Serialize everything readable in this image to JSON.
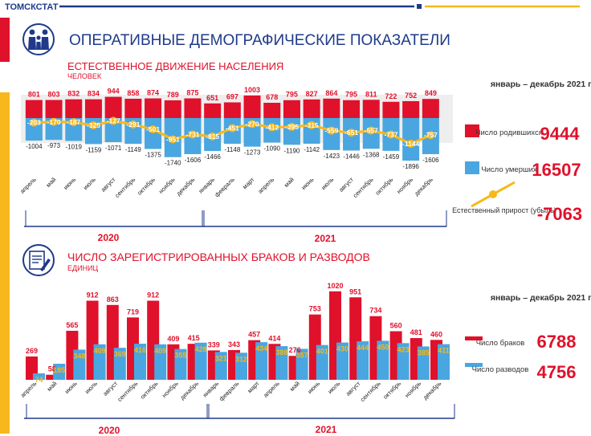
{
  "header": {
    "agency": "ТОМСКСТАТ",
    "title": "ОПЕРАТИВНЫЕ ДЕМОГРАФИЧЕСКИЕ ПОКАЗАТЕЛИ"
  },
  "colors": {
    "red": "#e0112b",
    "blue": "#4aa6e0",
    "yellow": "#f7b81b",
    "navy": "#1f3a8a",
    "accent_red": "#e0112b",
    "accent_yellow": "#f7b81b"
  },
  "icons": [
    "family-icon",
    "document-icon"
  ],
  "chart_data": [
    {
      "type": "bar",
      "title": "ЕСТЕСТВЕННОЕ ДВИЖЕНИЕ НАСЕЛЕНИЯ",
      "unit": "ЧЕЛОВЕК",
      "categories": [
        "апрель",
        "май",
        "июнь",
        "июль",
        "август",
        "сентябрь",
        "октябрь",
        "ноябрь",
        "декабрь",
        "январь",
        "февраль",
        "март",
        "апрель",
        "май",
        "июнь",
        "июль",
        "август",
        "сентябрь",
        "октябрь",
        "ноябрь",
        "декабрь"
      ],
      "year_groups": [
        {
          "label": "2020",
          "start": 0,
          "end": 8
        },
        {
          "label": "2021",
          "start": 9,
          "end": 20
        }
      ],
      "series": [
        {
          "name": "births",
          "values": [
            801,
            803,
            832,
            834,
            944,
            858,
            874,
            789,
            875,
            651,
            697,
            1003,
            678,
            795,
            827,
            864,
            795,
            811,
            722,
            752,
            849
          ]
        },
        {
          "name": "deaths",
          "values": [
            -1004,
            -973,
            -1019,
            -1159,
            -1071,
            -1149,
            -1375,
            -1740,
            -1606,
            -1466,
            -1148,
            -1273,
            -1090,
            -1190,
            -1142,
            -1423,
            -1446,
            -1368,
            -1459,
            -1896,
            -1606
          ]
        },
        {
          "name": "natural_change",
          "values": [
            -203,
            -170,
            -187,
            -325,
            -127,
            -291,
            -501,
            -951,
            -731,
            -815,
            -451,
            -270,
            -412,
            -395,
            -315,
            -559,
            -651,
            -557,
            -737,
            -1144,
            -757
          ]
        }
      ],
      "summary": {
        "period": "январь – декабрь 2021 года",
        "items": [
          {
            "label": "Число родившихся",
            "value": "9444"
          },
          {
            "label": "Число умерших",
            "value": "16507"
          },
          {
            "label": "Естественный прирост (убыль)",
            "value": "-7063"
          }
        ]
      }
    },
    {
      "type": "bar",
      "title": "ЧИСЛО ЗАРЕГИСТРИРОВАННЫХ БРАКОВ И РАЗВОДОВ",
      "unit": "ЕДИНИЦ",
      "categories": [
        "апрель",
        "май",
        "июнь",
        "июль",
        "август",
        "сентябрь",
        "октябрь",
        "ноябрь",
        "декабрь",
        "январь",
        "февраль",
        "март",
        "апрель",
        "май",
        "июнь",
        "июль",
        "август",
        "сентябрь",
        "октябрь",
        "ноябрь",
        "декабрь"
      ],
      "year_groups": [
        {
          "label": "2020",
          "start": 0,
          "end": 8
        },
        {
          "label": "2021",
          "start": 9,
          "end": 20
        }
      ],
      "series": [
        {
          "name": "marriages",
          "values": [
            269,
            58,
            565,
            912,
            863,
            719,
            912,
            409,
            415,
            339,
            343,
            457,
            414,
            276,
            753,
            1020,
            951,
            734,
            560,
            481,
            460
          ]
        },
        {
          "name": "divorces",
          "values": [
            74,
            185,
            348,
            409,
            369,
            416,
            409,
            355,
            428,
            321,
            312,
            434,
            388,
            357,
            401,
            430,
            444,
            450,
            423,
            385,
            411
          ]
        }
      ],
      "summary": {
        "period": "январь – декабрь 2021 года",
        "items": [
          {
            "label": "Число браков",
            "value": "6788"
          },
          {
            "label": "Число разводов",
            "value": "4756"
          }
        ]
      }
    }
  ]
}
